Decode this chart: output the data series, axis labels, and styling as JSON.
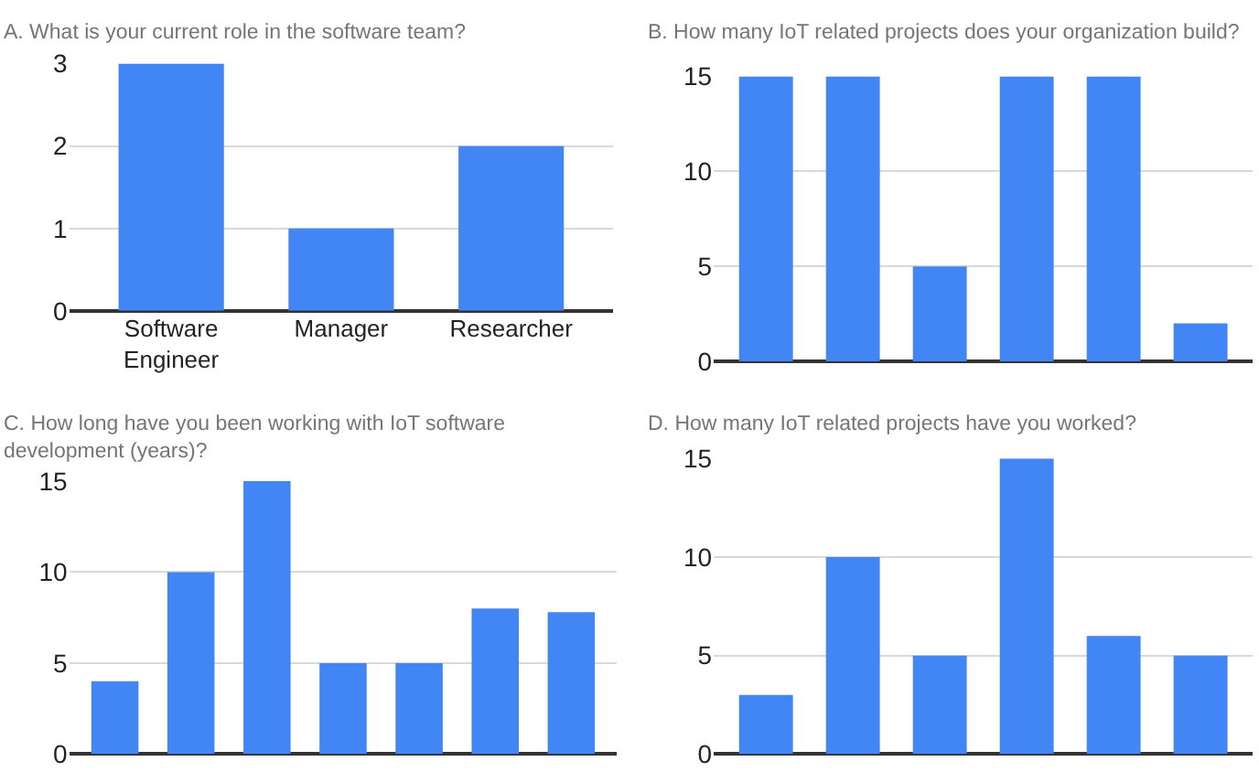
{
  "chart_data": [
    {
      "type": "bar",
      "title": "A. What is your current role in the software team?",
      "categories": [
        "Software Engineer",
        "Manager",
        "Researcher"
      ],
      "values": [
        3,
        1,
        2
      ],
      "color": "#4285f4",
      "ylim": [
        0,
        3
      ],
      "yticks": [
        0,
        1,
        2,
        3
      ],
      "grid": "y"
    },
    {
      "type": "bar",
      "title": "B. How many IoT related projects does your organization build?",
      "categories": [
        null,
        null,
        null,
        null,
        null,
        null
      ],
      "values": [
        15,
        15,
        5,
        15,
        15,
        2
      ],
      "color": "#4285f4",
      "ylim": [
        0,
        15
      ],
      "yticks": [
        0,
        5,
        10,
        15
      ],
      "grid": "y"
    },
    {
      "type": "bar",
      "title": "C. How long have you been working with IoT software development (years)?",
      "categories": [
        null,
        null,
        null,
        null,
        null,
        null,
        null
      ],
      "values": [
        4,
        10,
        15,
        5,
        5,
        8,
        7.8
      ],
      "color": "#4285f4",
      "ylim": [
        0,
        15
      ],
      "yticks": [
        0,
        5,
        10,
        15
      ],
      "grid": "y"
    },
    {
      "type": "bar",
      "title": "D. How many IoT related projects have you worked?",
      "categories": [
        null,
        null,
        null,
        null,
        null,
        null
      ],
      "values": [
        3,
        10,
        5,
        15,
        6,
        5
      ],
      "color": "#4285f4",
      "ylim": [
        0,
        15
      ],
      "yticks": [
        0,
        5,
        10,
        15
      ],
      "grid": "y"
    }
  ]
}
